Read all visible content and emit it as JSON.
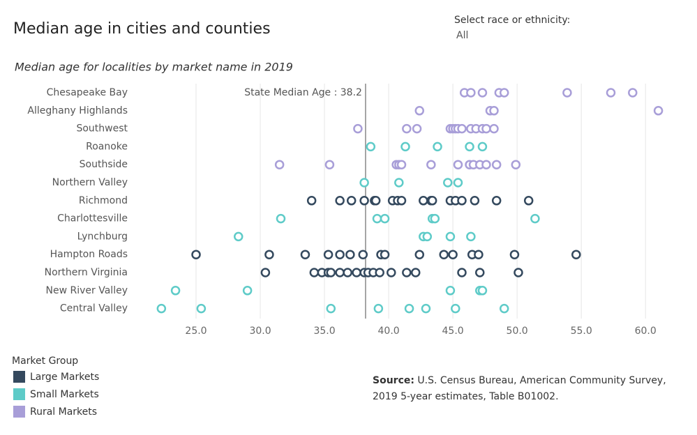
{
  "chart_data": {
    "type": "strip",
    "title": "Median age in cities and counties",
    "subtitle": "Median age for localities by market name in 2019",
    "filter": {
      "label": "Select race or ethnicity:",
      "value": "All"
    },
    "categories": [
      "Chesapeake Bay",
      "Alleghany Highlands",
      "Southwest",
      "Roanoke",
      "Southside",
      "Northern Valley",
      "Richmond",
      "Charlottesville",
      "Lynchburg",
      "Hampton Roads",
      "Northern Virginia",
      "New River Valley",
      "Central Valley"
    ],
    "legend_title": "Market Group",
    "series": [
      {
        "name": "Large Markets",
        "color": "#34495e",
        "values": [
          null,
          null,
          null,
          null,
          null,
          null,
          [
            34.0,
            36.2,
            37.1,
            38.1,
            38.9,
            39.0,
            40.3,
            40.7,
            41.0,
            42.7,
            43.3,
            43.4,
            44.8,
            45.2,
            45.7,
            46.7,
            48.4,
            50.9
          ],
          null,
          null,
          [
            25.0,
            30.7,
            33.5,
            35.3,
            36.2,
            37.0,
            38.0,
            39.4,
            39.7,
            42.4,
            44.3,
            45.0,
            46.5,
            47.0,
            49.8,
            54.6
          ],
          [
            30.4,
            34.2,
            34.8,
            35.3,
            35.5,
            36.2,
            36.8,
            37.5,
            38.1,
            38.4,
            38.8,
            39.3,
            40.2,
            41.4,
            42.1,
            45.7,
            47.1,
            50.1
          ],
          null,
          null
        ]
      },
      {
        "name": "Small Markets",
        "color": "#5ecbc8",
        "values": [
          null,
          null,
          null,
          [
            38.6,
            41.3,
            43.8,
            46.3,
            47.3
          ],
          null,
          [
            38.1,
            40.8,
            44.6,
            45.4
          ],
          null,
          [
            31.6,
            39.1,
            39.7,
            43.4,
            43.6,
            51.4
          ],
          [
            28.3,
            42.7,
            43.0,
            44.8,
            46.4
          ],
          null,
          null,
          [
            23.4,
            29.0,
            44.8,
            47.1,
            47.3
          ],
          [
            22.3,
            25.4,
            35.5,
            39.2,
            41.6,
            42.9,
            45.2,
            49.0
          ]
        ]
      },
      {
        "name": "Rural Markets",
        "color": "#a89ed8",
        "values": [
          [
            45.9,
            46.4,
            47.3,
            48.6,
            49.0,
            53.9,
            57.3,
            59.0
          ],
          [
            42.4,
            47.9,
            48.2,
            61.0
          ],
          [
            37.6,
            41.4,
            42.2,
            44.8,
            45.0,
            45.2,
            45.4,
            45.7,
            46.4,
            46.8,
            47.3,
            47.6,
            48.2
          ],
          null,
          [
            31.5,
            35.4,
            40.6,
            40.8,
            41.0,
            43.3,
            45.4,
            46.3,
            46.6,
            47.1,
            47.6,
            48.4,
            49.9
          ],
          null,
          null,
          null,
          null,
          null,
          null,
          null,
          null
        ]
      }
    ],
    "reference_line": {
      "value": 38.2,
      "label": "State Median Age : 38.2"
    },
    "xlim": [
      21.5,
      62
    ],
    "xticks": [
      {
        "value": 25,
        "label": "25.0"
      },
      {
        "value": 30,
        "label": "30.0"
      },
      {
        "value": 35,
        "label": "35.0"
      },
      {
        "value": 40,
        "label": "40.0"
      },
      {
        "value": 45,
        "label": "45.0"
      },
      {
        "value": 50,
        "label": "50.0"
      },
      {
        "value": 55,
        "label": "55.0"
      },
      {
        "value": 60,
        "label": "60.0"
      }
    ],
    "grid": true,
    "source": {
      "label": "Source:",
      "text": "U.S. Census Bureau, American Community Survey, 2019 5-year estimates, Table B01002."
    }
  }
}
